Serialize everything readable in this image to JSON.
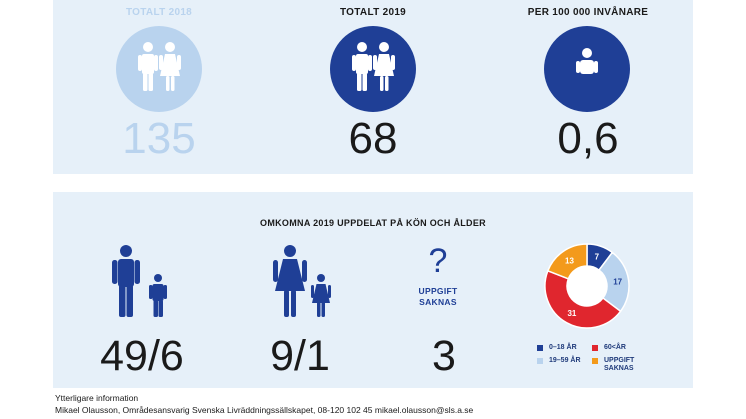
{
  "top": {
    "col2018": {
      "label": "TOTALT 2018",
      "value": "135",
      "color": "#b9d3ee"
    },
    "col2019": {
      "label": "TOTALT 2019",
      "value": "68",
      "color": "#1f3f96"
    },
    "colPer": {
      "label": "PER 100 000 INVÅNARE",
      "value": "0,6",
      "color": "#1f3f96"
    }
  },
  "bottom": {
    "title": "OMKOMNA 2019 UPPDELAT PÅ KÖN OCH ÅLDER",
    "men": {
      "value": "49/6"
    },
    "women": {
      "value": "9/1"
    },
    "unknown": {
      "symbol": "?",
      "label_line1": "UPPGIFT",
      "label_line2": "SAKNAS",
      "value": "3"
    }
  },
  "chart_data": {
    "type": "pie",
    "categories": [
      "0–18 ÅR",
      "19–59 ÅR",
      "60<ÅR",
      "UPPGIFT SAKNAS"
    ],
    "values": [
      7,
      17,
      31,
      13
    ],
    "colors": [
      "#1f3f96",
      "#b9d3ee",
      "#e0262e",
      "#f39a1c"
    ],
    "legend_labels": [
      "0–18 ÅR",
      "19–59 ÅR",
      "60<ÅR",
      "UPPGIFT",
      "SAKNAS"
    ],
    "donut": true
  },
  "footer": {
    "line1": "Ytterligare information",
    "line2": "Mikael Olausson, Områdesansvarig Svenska Livräddningssällskapet, 08-120 102 45 mikael.olausson@sls.a.se"
  }
}
